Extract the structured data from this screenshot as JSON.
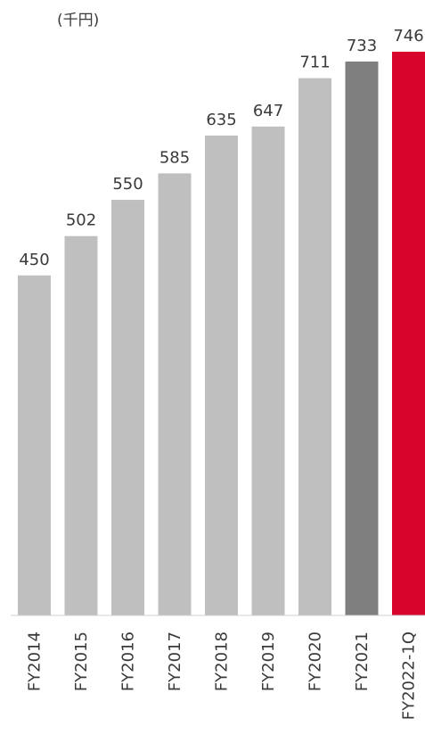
{
  "chart_data": {
    "type": "bar",
    "unit_label": "(千円)",
    "categories": [
      "FY2014",
      "FY2015",
      "FY2016",
      "FY2017",
      "FY2018",
      "FY2019",
      "FY2020",
      "FY2021",
      "FY2022-1Q"
    ],
    "values": [
      450,
      502,
      550,
      585,
      635,
      647,
      711,
      733,
      746
    ],
    "colors": [
      "#bfbfbf",
      "#bfbfbf",
      "#bfbfbf",
      "#bfbfbf",
      "#bfbfbf",
      "#bfbfbf",
      "#bfbfbf",
      "#7f7f7f",
      "#d7052c"
    ],
    "ylim": [
      0,
      746
    ],
    "grid": false,
    "legend": "none"
  }
}
